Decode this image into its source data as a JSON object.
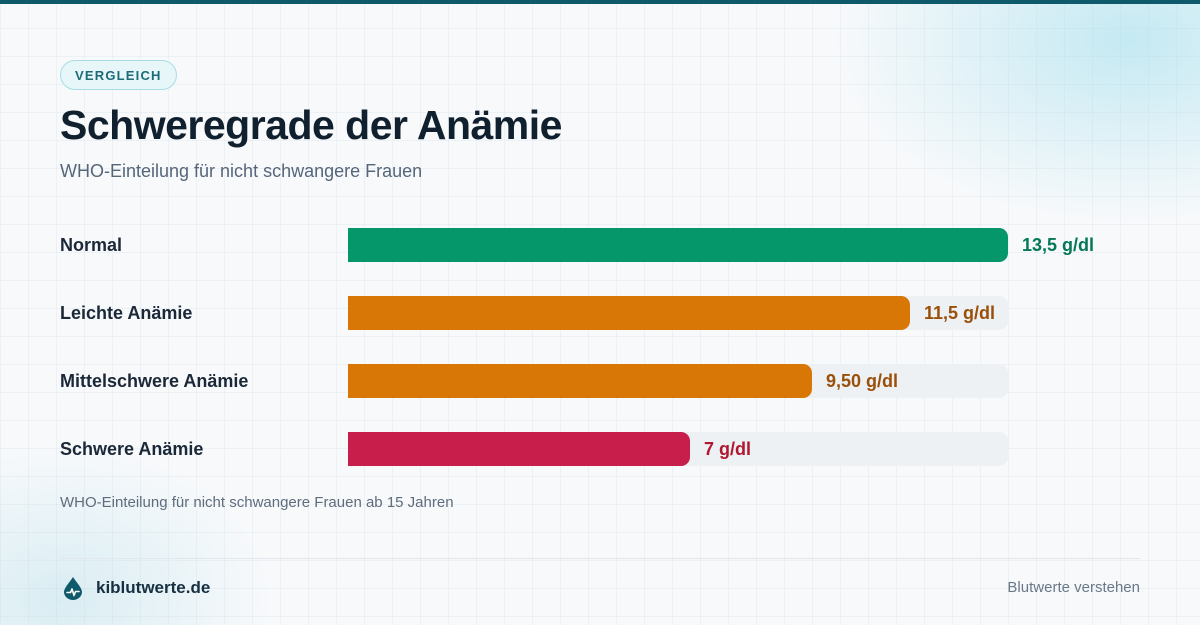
{
  "badge": "VERGLEICH",
  "header": {
    "title": "Schweregrade der Anämie",
    "subtitle": "WHO-Einteilung für nicht schwangere Frauen"
  },
  "chart_data": {
    "type": "bar",
    "orientation": "horizontal",
    "categories": [
      "Normal",
      "Leichte Anämie",
      "Mittelschwere Anämie",
      "Schwere Anämie"
    ],
    "values": [
      13.5,
      11.5,
      9.5,
      7
    ],
    "value_labels": [
      "13,5 g/dl",
      "11,5 g/dl",
      "9,50 g/dl",
      "7 g/dl"
    ],
    "unit": "g/dl",
    "xlim": [
      0,
      13.5
    ],
    "grid": false,
    "bar_colors": [
      "#059669",
      "#d97706",
      "#d97706",
      "#c81e4c"
    ],
    "label_colors": [
      "#047857",
      "#9a4f0a",
      "#9a4f0a",
      "#b0182f"
    ],
    "title": "Schweregrade der Anämie",
    "subtitle": "WHO-Einteilung für nicht schwangere Frauen"
  },
  "footnote": "WHO-Einteilung für nicht schwangere Frauen ab 15 Jahren",
  "footer": {
    "brand": "kiblutwerte.de",
    "brand_icon": "blood-drop-pulse-icon",
    "tagline": "Blutwerte verstehen"
  },
  "colors": {
    "accent": "#0f5a6a",
    "title": "#10202e",
    "track": "#edf1f4"
  }
}
